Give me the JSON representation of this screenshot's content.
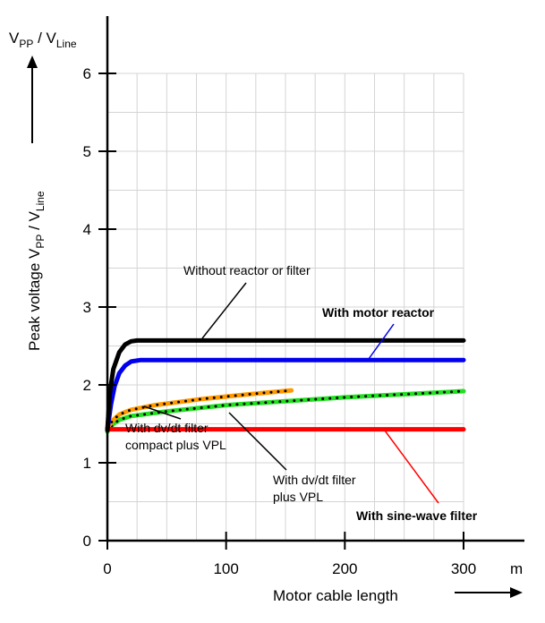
{
  "chart_data": {
    "type": "line",
    "title": "",
    "xlabel": "Motor cable length",
    "xunit": "m",
    "ylabel_main": "Peak voltage V",
    "ylabel_sub1": "PP",
    "ylabel_mid": " / V",
    "ylabel_sub2": "Line",
    "ytop_main": "V",
    "ytop_sub1": "PP",
    "ytop_mid": " / V",
    "ytop_sub2": "Line",
    "xlim": [
      0,
      300
    ],
    "ylim": [
      0,
      6
    ],
    "xticks": [
      "0",
      "100",
      "200",
      "300"
    ],
    "xtick_values": [
      0,
      100,
      200,
      300
    ],
    "yticks": [
      "0",
      "1",
      "2",
      "3",
      "4",
      "5",
      "6"
    ],
    "ytick_values": [
      0,
      1,
      2,
      3,
      4,
      5,
      6
    ],
    "grid": true,
    "series": [
      {
        "label_lines": [
          "Without reactor or filter"
        ],
        "color": "#000000",
        "dotted_overlay": false,
        "points": [
          [
            0,
            1.42
          ],
          [
            2,
            1.9
          ],
          [
            5,
            2.2
          ],
          [
            10,
            2.42
          ],
          [
            15,
            2.52
          ],
          [
            20,
            2.56
          ],
          [
            25,
            2.57
          ],
          [
            300,
            2.57
          ]
        ]
      },
      {
        "label_lines": [
          "With motor reactor"
        ],
        "color": "#0000ee",
        "dotted_overlay": false,
        "points": [
          [
            0,
            1.42
          ],
          [
            3,
            1.75
          ],
          [
            6,
            1.98
          ],
          [
            10,
            2.15
          ],
          [
            15,
            2.25
          ],
          [
            20,
            2.3
          ],
          [
            28,
            2.32
          ],
          [
            300,
            2.32
          ]
        ]
      },
      {
        "label_lines": [
          "With dv/dt filter",
          "compact plus VPL"
        ],
        "color": "#ff9900",
        "dotted_overlay": true,
        "points": [
          [
            0,
            1.45
          ],
          [
            5,
            1.55
          ],
          [
            10,
            1.62
          ],
          [
            20,
            1.68
          ],
          [
            40,
            1.74
          ],
          [
            80,
            1.82
          ],
          [
            120,
            1.88
          ],
          [
            155,
            1.93
          ]
        ]
      },
      {
        "label_lines": [
          "With dv/dt filter",
          "plus VPL"
        ],
        "color": "#22dd22",
        "dotted_overlay": true,
        "points": [
          [
            0,
            1.4
          ],
          [
            5,
            1.5
          ],
          [
            10,
            1.55
          ],
          [
            20,
            1.6
          ],
          [
            50,
            1.66
          ],
          [
            100,
            1.74
          ],
          [
            200,
            1.84
          ],
          [
            300,
            1.92
          ]
        ]
      },
      {
        "label_lines": [
          "With sine-wave filter"
        ],
        "color": "#ff0000",
        "dotted_overlay": false,
        "points": [
          [
            0,
            1.43
          ],
          [
            300,
            1.43
          ]
        ]
      }
    ]
  }
}
